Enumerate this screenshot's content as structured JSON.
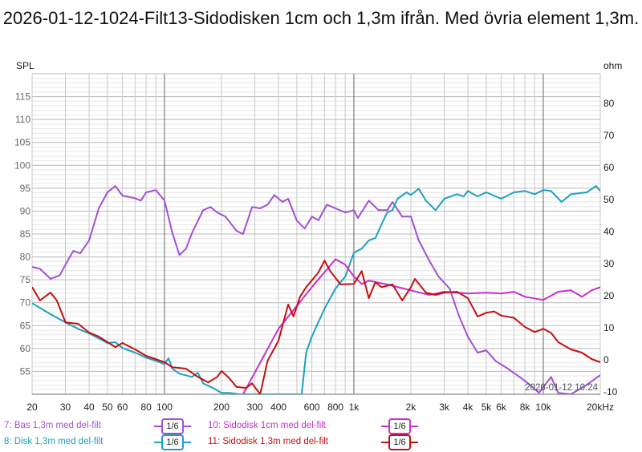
{
  "chart_data": {
    "type": "line",
    "title": "2026-01-12-1024-Filt13-Sidodisken 1cm och 1,3m ifrån. Med övria element 1,3m.",
    "ylabel": "SPL",
    "y2label": "ohm",
    "xscale": "log",
    "xlim": [
      20,
      20000
    ],
    "ylim": [
      50,
      120
    ],
    "y2lim": [
      -10.75,
      89.25
    ],
    "xticks": [
      {
        "v": 20,
        "l": "20"
      },
      {
        "v": 30,
        "l": "30"
      },
      {
        "v": 40,
        "l": "40"
      },
      {
        "v": 50,
        "l": "50"
      },
      {
        "v": 60,
        "l": "60"
      },
      {
        "v": 80,
        "l": "80"
      },
      {
        "v": 100,
        "l": "100"
      },
      {
        "v": 200,
        "l": "200"
      },
      {
        "v": 300,
        "l": "300"
      },
      {
        "v": 400,
        "l": "400"
      },
      {
        "v": 600,
        "l": "600"
      },
      {
        "v": 800,
        "l": "800"
      },
      {
        "v": 1000,
        "l": "1k"
      },
      {
        "v": 2000,
        "l": "2k"
      },
      {
        "v": 3000,
        "l": "3k"
      },
      {
        "v": 4000,
        "l": "4k"
      },
      {
        "v": 5000,
        "l": "5k"
      },
      {
        "v": 6000,
        "l": "6k"
      },
      {
        "v": 8000,
        "l": "8k"
      },
      {
        "v": 10000,
        "l": "10k"
      },
      {
        "v": 20000,
        "l": "20kHz"
      }
    ],
    "yticks": [
      "55",
      "60",
      "65",
      "70",
      "75",
      "80",
      "85",
      "90",
      "95",
      "100",
      "105",
      "110",
      "115"
    ],
    "y2ticks": [
      "-10",
      "0",
      "10",
      "20",
      "30",
      "40",
      "50",
      "60",
      "70",
      "80"
    ],
    "grid": true,
    "timestamp": "2026-01-12 10:24",
    "legend_placement": "bottom",
    "series": [
      {
        "name": "7: Bas 1,3m med del-filt",
        "smoothing": "1/6",
        "color": "#a24fd6",
        "points": [
          [
            20,
            77.8
          ],
          [
            22,
            77.4
          ],
          [
            25,
            75.2
          ],
          [
            28,
            76
          ],
          [
            30,
            78.3
          ],
          [
            33,
            81.3
          ],
          [
            36,
            80.8
          ],
          [
            40,
            83.6
          ],
          [
            45,
            90.6
          ],
          [
            50,
            94.1
          ],
          [
            55,
            95.5
          ],
          [
            60,
            93.4
          ],
          [
            70,
            92.8
          ],
          [
            75,
            92.3
          ],
          [
            80,
            94.1
          ],
          [
            90,
            94.6
          ],
          [
            100,
            92.3
          ],
          [
            110,
            85.3
          ],
          [
            120,
            80.4
          ],
          [
            130,
            81.8
          ],
          [
            140,
            85.3
          ],
          [
            160,
            90.2
          ],
          [
            175,
            90.9
          ],
          [
            190,
            89.7
          ],
          [
            210,
            88.8
          ],
          [
            240,
            85.7
          ],
          [
            260,
            85.0
          ],
          [
            290,
            90.9
          ],
          [
            320,
            90.6
          ],
          [
            350,
            91.4
          ],
          [
            380,
            93.5
          ],
          [
            420,
            92
          ],
          [
            450,
            92.7
          ],
          [
            500,
            87.9
          ],
          [
            550,
            86.2
          ],
          [
            600,
            88.8
          ],
          [
            650,
            88.0
          ],
          [
            720,
            91.4
          ],
          [
            800,
            90.6
          ],
          [
            900,
            89.7
          ],
          [
            1000,
            90.2
          ],
          [
            1050,
            88.5
          ],
          [
            1200,
            92.3
          ],
          [
            1350,
            90.2
          ],
          [
            1500,
            90.2
          ],
          [
            1600,
            92
          ],
          [
            1800,
            88.8
          ],
          [
            2000,
            88.8
          ],
          [
            2200,
            83.6
          ],
          [
            2500,
            79.2
          ],
          [
            2800,
            75.7
          ],
          [
            3200,
            73.1
          ],
          [
            3600,
            67
          ],
          [
            4000,
            62.6
          ],
          [
            4500,
            59.1
          ],
          [
            5000,
            59.6
          ],
          [
            5600,
            57.3
          ],
          [
            6500,
            55.6
          ],
          [
            7500,
            53.8
          ],
          [
            8500,
            52.1
          ],
          [
            9500,
            50.3
          ],
          [
            11000,
            53.8
          ],
          [
            12000,
            50.3
          ],
          [
            14000,
            50
          ],
          [
            17000,
            52.1
          ],
          [
            20000,
            54.2
          ]
        ]
      },
      {
        "name": "8: Disk 1,3m med del-filt",
        "smoothing": "1/6",
        "color": "#1ea0c0",
        "points": [
          [
            20,
            69.9
          ],
          [
            25,
            67.5
          ],
          [
            30,
            65.7
          ],
          [
            35,
            64.3
          ],
          [
            40,
            63.3
          ],
          [
            50,
            61.2
          ],
          [
            55,
            61.4
          ],
          [
            60,
            60.1
          ],
          [
            70,
            59.1
          ],
          [
            80,
            58
          ],
          [
            90,
            57.3
          ],
          [
            100,
            56.6
          ],
          [
            105,
            57.9
          ],
          [
            110,
            55.6
          ],
          [
            120,
            54.5
          ],
          [
            140,
            53.8
          ],
          [
            150,
            54.7
          ],
          [
            160,
            52.4
          ],
          [
            180,
            51.4
          ],
          [
            200,
            50.3
          ],
          [
            220,
            50.3
          ],
          [
            250,
            50
          ],
          [
            530,
            50
          ],
          [
            560,
            59.1
          ],
          [
            600,
            62.6
          ],
          [
            700,
            68.7
          ],
          [
            800,
            73.1
          ],
          [
            900,
            75.7
          ],
          [
            1000,
            80.9
          ],
          [
            1100,
            81.8
          ],
          [
            1200,
            83.6
          ],
          [
            1300,
            84.1
          ],
          [
            1400,
            87.1
          ],
          [
            1500,
            89.7
          ],
          [
            1600,
            90.2
          ],
          [
            1700,
            92.7
          ],
          [
            1900,
            94.1
          ],
          [
            2000,
            93.5
          ],
          [
            2200,
            94.9
          ],
          [
            2400,
            92.3
          ],
          [
            2700,
            90.2
          ],
          [
            3000,
            92.7
          ],
          [
            3500,
            93.7
          ],
          [
            3800,
            93.2
          ],
          [
            4000,
            94.4
          ],
          [
            4500,
            93.2
          ],
          [
            5000,
            94.1
          ],
          [
            6000,
            92.7
          ],
          [
            7000,
            94.1
          ],
          [
            8000,
            94.4
          ],
          [
            9000,
            93.7
          ],
          [
            10000,
            94.6
          ],
          [
            11000,
            94.4
          ],
          [
            12500,
            92
          ],
          [
            14000,
            93.7
          ],
          [
            17000,
            94.1
          ],
          [
            19000,
            95.5
          ],
          [
            20000,
            94.4
          ]
        ]
      },
      {
        "name": "10: Sidodisk 1cm med del-filt",
        "smoothing": "1/6",
        "color": "#c72fd0",
        "points": [
          [
            260,
            50
          ],
          [
            400,
            64.3
          ],
          [
            600,
            73.4
          ],
          [
            800,
            79.5
          ],
          [
            900,
            78.3
          ],
          [
            1000,
            75.7
          ],
          [
            1100,
            74.1
          ],
          [
            1200,
            74.8
          ],
          [
            1500,
            74
          ],
          [
            2000,
            72.7
          ],
          [
            2500,
            71.7
          ],
          [
            3000,
            72.4
          ],
          [
            4000,
            72
          ],
          [
            5000,
            72.2
          ],
          [
            6000,
            72
          ],
          [
            7000,
            72.4
          ],
          [
            8000,
            71.3
          ],
          [
            10000,
            70.6
          ],
          [
            12000,
            72.4
          ],
          [
            14000,
            72.7
          ],
          [
            16000,
            71.3
          ],
          [
            18000,
            72.7
          ],
          [
            20000,
            73.4
          ]
        ]
      },
      {
        "name": "11: Sidodisk 1,3m med del-filt",
        "smoothing": "1/6",
        "color": "#c41010",
        "points": [
          [
            20,
            73.4
          ],
          [
            22,
            70.5
          ],
          [
            25,
            72.2
          ],
          [
            27,
            70.5
          ],
          [
            30,
            65.7
          ],
          [
            35,
            65.4
          ],
          [
            40,
            63.5
          ],
          [
            45,
            62.6
          ],
          [
            50,
            61.4
          ],
          [
            55,
            60.3
          ],
          [
            60,
            61.2
          ],
          [
            70,
            59.8
          ],
          [
            80,
            58.4
          ],
          [
            100,
            57
          ],
          [
            110,
            55.9
          ],
          [
            130,
            55.6
          ],
          [
            150,
            53.8
          ],
          [
            170,
            52.6
          ],
          [
            190,
            53.8
          ],
          [
            200,
            55.1
          ],
          [
            220,
            53.5
          ],
          [
            240,
            51.6
          ],
          [
            270,
            51.4
          ],
          [
            290,
            52.4
          ],
          [
            320,
            50
          ],
          [
            350,
            57.3
          ],
          [
            400,
            61.7
          ],
          [
            450,
            69.6
          ],
          [
            480,
            67
          ],
          [
            520,
            71.3
          ],
          [
            560,
            73.4
          ],
          [
            650,
            76.6
          ],
          [
            700,
            79.2
          ],
          [
            750,
            76.9
          ],
          [
            850,
            74
          ],
          [
            1000,
            74.1
          ],
          [
            1100,
            76.9
          ],
          [
            1200,
            71
          ],
          [
            1300,
            74.5
          ],
          [
            1400,
            73.4
          ],
          [
            1600,
            74
          ],
          [
            1800,
            70.5
          ],
          [
            2000,
            73.4
          ],
          [
            2100,
            75.2
          ],
          [
            2400,
            72.2
          ],
          [
            2700,
            71.7
          ],
          [
            3000,
            72.2
          ],
          [
            3500,
            72.4
          ],
          [
            4000,
            71
          ],
          [
            4500,
            67
          ],
          [
            5000,
            67.8
          ],
          [
            5500,
            68.1
          ],
          [
            6000,
            67.2
          ],
          [
            7000,
            66.7
          ],
          [
            8000,
            64.7
          ],
          [
            9000,
            63.6
          ],
          [
            10000,
            64.3
          ],
          [
            11000,
            63.4
          ],
          [
            12000,
            61.4
          ],
          [
            14000,
            59.8
          ],
          [
            16000,
            59.1
          ],
          [
            18000,
            57.7
          ],
          [
            20000,
            57
          ]
        ]
      }
    ]
  }
}
